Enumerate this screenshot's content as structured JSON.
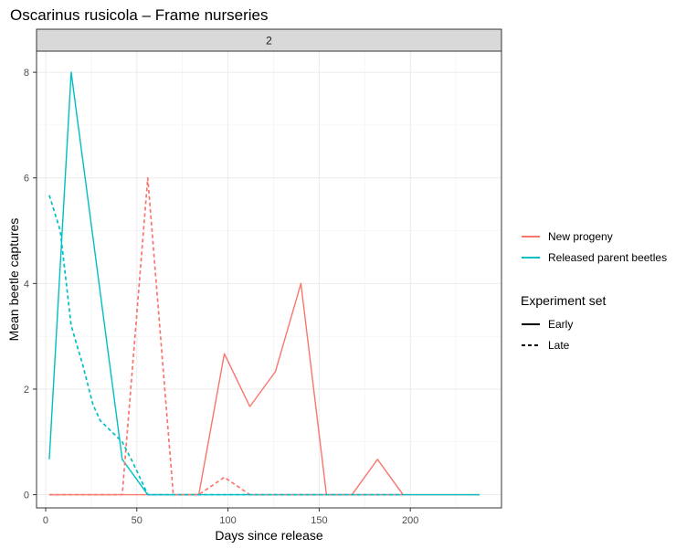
{
  "chart_data": {
    "type": "line",
    "title": "Oscarinus rusicola – Frame nurseries",
    "facet_label": "2",
    "xlabel": "Days since release",
    "ylabel": "Mean beetle captures",
    "xlim": [
      -5,
      250
    ],
    "ylim": [
      -0.25,
      8.4
    ],
    "x_ticks": [
      0,
      50,
      100,
      150,
      200
    ],
    "y_ticks": [
      0,
      2,
      4,
      6,
      8
    ],
    "grid": true,
    "legend_position": "right",
    "color_legend": {
      "title": "",
      "entries": [
        {
          "label": "New progeny",
          "color": "#F8766D"
        },
        {
          "label": "Released parent beetles",
          "color": "#00BFC4"
        }
      ]
    },
    "linetype_legend": {
      "title": "Experiment set",
      "entries": [
        {
          "label": "Early",
          "dash": "solid"
        },
        {
          "label": "Late",
          "dash": "dashed"
        }
      ]
    },
    "series": [
      {
        "name": "New progeny",
        "set": "Early",
        "color": "#F8766D",
        "dash": "solid",
        "x": [
          2,
          14,
          28,
          42,
          56,
          70,
          84,
          98,
          112,
          126,
          140,
          154,
          168,
          182,
          196,
          210,
          224,
          238
        ],
        "y": [
          0,
          0,
          0,
          0,
          0,
          0,
          0,
          2.67,
          1.67,
          2.33,
          4.0,
          0,
          0,
          0.67,
          0,
          0,
          0,
          0
        ]
      },
      {
        "name": "Released parent beetles",
        "set": "Early",
        "color": "#00BFC4",
        "dash": "solid",
        "x": [
          2,
          14,
          42,
          56,
          70,
          84,
          98,
          112,
          126,
          140,
          154,
          168,
          182,
          196,
          210,
          224,
          238
        ],
        "y": [
          0.67,
          8.0,
          0.67,
          0,
          0,
          0,
          0,
          0,
          0,
          0,
          0,
          0,
          0,
          0,
          0,
          0,
          0
        ]
      },
      {
        "name": "New progeny",
        "set": "Late",
        "color": "#F8766D",
        "dash": "dashed",
        "x": [
          2,
          14,
          28,
          42,
          56,
          70,
          84,
          98,
          112,
          126,
          140,
          154,
          168,
          182,
          196
        ],
        "y": [
          0,
          0,
          0,
          0,
          6.0,
          0,
          0,
          0.33,
          0,
          0,
          0,
          0,
          0,
          0,
          0
        ]
      },
      {
        "name": "Released parent beetles",
        "set": "Late",
        "color": "#00BFC4",
        "dash": "dashed",
        "x": [
          2,
          8,
          14,
          20,
          26,
          30,
          36,
          42,
          48,
          56,
          70,
          84,
          98,
          112,
          126,
          140,
          154,
          168,
          182,
          196
        ],
        "y": [
          5.67,
          5.0,
          3.2,
          2.5,
          1.7,
          1.4,
          1.2,
          1.0,
          0.6,
          0,
          0,
          0,
          0,
          0,
          0,
          0,
          0,
          0,
          0,
          0
        ]
      }
    ]
  }
}
